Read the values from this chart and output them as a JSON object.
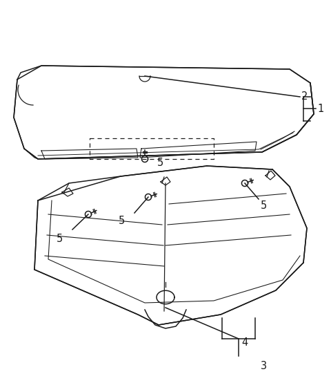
{
  "bg_color": "#ffffff",
  "line_color": "#1a1a1a",
  "line_color_light": "#555555",
  "fig_width": 4.8,
  "fig_height": 5.54,
  "dpi": 100
}
